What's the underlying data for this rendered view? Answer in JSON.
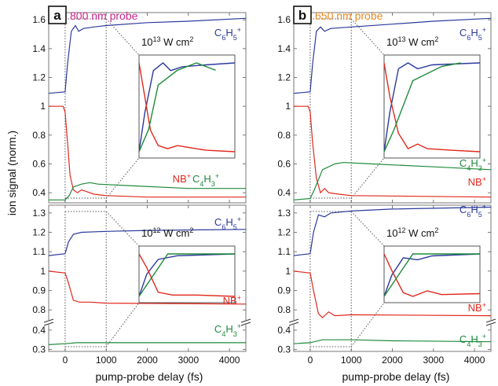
{
  "colors": {
    "blue": "#2b3a9c",
    "red": "#e0281c",
    "green": "#1e8a3a",
    "probe_a": "#c8268c",
    "probe_b": "#e88a20",
    "frame": "#777777",
    "guide": "#555555"
  },
  "y_axis_label": "ion signal (norm.)",
  "x_axis_label": "pump-probe delay (fs)",
  "chart_data": [
    {
      "type": "line",
      "panel": "a",
      "letter": "a",
      "probe": "800 nm probe",
      "x_ticks": [
        "0",
        "1000",
        "2000",
        "3000",
        "4000"
      ],
      "xlim": [
        -400,
        4400
      ],
      "subplots": [
        {
          "position": "top",
          "intensity_base": "10",
          "intensity_exp": "13",
          "intensity_unit": " W cm",
          "intensity_unit_exp": "2",
          "ylim": [
            0.33,
            1.65
          ],
          "y_ticks": [
            "0.4",
            "0.6",
            "0.8",
            "1",
            "1.2",
            "1.4",
            "1.6"
          ],
          "series": [
            {
              "label": "C",
              "sub1": "6",
              "mid": "H",
              "sub2": "5",
              "sup": "+",
              "color": "blue",
              "label_anchor": "end",
              "points": [
                [
                  -400,
                  1.09
                ],
                [
                  0,
                  1.1
                ],
                [
                  60,
                  1.3
                ],
                [
                  150,
                  1.52
                ],
                [
                  250,
                  1.56
                ],
                [
                  330,
                  1.52
                ],
                [
                  450,
                  1.54
                ],
                [
                  700,
                  1.55
                ],
                [
                  1000,
                  1.56
                ],
                [
                  2000,
                  1.58
                ],
                [
                  3000,
                  1.59
                ],
                [
                  4400,
                  1.61
                ]
              ]
            },
            {
              "label": "NB",
              "sup": "+",
              "color": "red",
              "label_anchor": "end",
              "points": [
                [
                  -400,
                  1.0
                ],
                [
                  -50,
                  1.0
                ],
                [
                  0,
                  0.96
                ],
                [
                  60,
                  0.74
                ],
                [
                  120,
                  0.52
                ],
                [
                  200,
                  0.42
                ],
                [
                  300,
                  0.4
                ],
                [
                  400,
                  0.42
                ],
                [
                  500,
                  0.41
                ],
                [
                  700,
                  0.39
                ],
                [
                  1000,
                  0.38
                ],
                [
                  2000,
                  0.37
                ],
                [
                  4400,
                  0.37
                ]
              ]
            },
            {
              "label": "C",
              "sub1": "4",
              "mid": "H",
              "sub2": "3",
              "sup": "+",
              "color": "green",
              "label_anchor": "start",
              "points": [
                [
                  -400,
                  0.35
                ],
                [
                  0,
                  0.35
                ],
                [
                  100,
                  0.38
                ],
                [
                  200,
                  0.44
                ],
                [
                  400,
                  0.46
                ],
                [
                  600,
                  0.47
                ],
                [
                  800,
                  0.46
                ],
                [
                  1500,
                  0.45
                ],
                [
                  3000,
                  0.43
                ],
                [
                  4400,
                  0.43
                ]
              ]
            }
          ]
        },
        {
          "position": "bottom",
          "intensity_base": "10",
          "intensity_exp": "12",
          "intensity_unit": " W cm",
          "intensity_unit_exp": "2",
          "ylim": [
            0.29,
            1.34
          ],
          "y_ticks": [
            "0.3",
            "0.4",
            "0.8",
            "0.9",
            "1",
            "1.1",
            "1.2",
            "1.3"
          ],
          "series": [
            {
              "label": "C",
              "sub1": "6",
              "mid": "H",
              "sub2": "5",
              "sup": "+",
              "color": "blue",
              "label_anchor": "end",
              "points": [
                [
                  -400,
                  1.08
                ],
                [
                  0,
                  1.09
                ],
                [
                  80,
                  1.15
                ],
                [
                  200,
                  1.19
                ],
                [
                  400,
                  1.2
                ],
                [
                  1000,
                  1.205
                ],
                [
                  2000,
                  1.21
                ],
                [
                  4400,
                  1.215
                ]
              ]
            },
            {
              "label": "NB",
              "sup": "+",
              "color": "red",
              "label_anchor": "end",
              "points": [
                [
                  -400,
                  1.0
                ],
                [
                  0,
                  0.99
                ],
                [
                  80,
                  0.94
                ],
                [
                  200,
                  0.85
                ],
                [
                  350,
                  0.84
                ],
                [
                  600,
                  0.84
                ],
                [
                  1000,
                  0.835
                ],
                [
                  4400,
                  0.83
                ]
              ]
            },
            {
              "label": "C",
              "sub1": "4",
              "mid": "H",
              "sub2": "3",
              "sup": "+",
              "color": "green",
              "label_anchor": "end",
              "points": [
                [
                  -400,
                  0.325
                ],
                [
                  0,
                  0.33
                ],
                [
                  300,
                  0.335
                ],
                [
                  1000,
                  0.335
                ],
                [
                  4400,
                  0.335
                ]
              ]
            }
          ]
        }
      ]
    },
    {
      "type": "line",
      "panel": "b",
      "letter": "b",
      "probe": "650 nm probe",
      "x_ticks": [
        "0",
        "1000",
        "2000",
        "3000",
        "4000"
      ],
      "xlim": [
        -400,
        4400
      ],
      "subplots": [
        {
          "position": "top",
          "intensity_base": "10",
          "intensity_exp": "13",
          "intensity_unit": " W cm",
          "intensity_unit_exp": "2",
          "ylim": [
            0.33,
            1.65
          ],
          "y_ticks": [
            "0.4",
            "0.6",
            "0.8",
            "1",
            "1.2",
            "1.4",
            "1.6"
          ],
          "series": [
            {
              "label": "C",
              "sub1": "6",
              "mid": "H",
              "sub2": "5",
              "sup": "+",
              "color": "blue",
              "label_anchor": "end",
              "points": [
                [
                  -400,
                  1.09
                ],
                [
                  0,
                  1.1
                ],
                [
                  60,
                  1.3
                ],
                [
                  150,
                  1.52
                ],
                [
                  250,
                  1.55
                ],
                [
                  350,
                  1.52
                ],
                [
                  500,
                  1.54
                ],
                [
                  1000,
                  1.55
                ],
                [
                  2000,
                  1.57
                ],
                [
                  3000,
                  1.59
                ],
                [
                  4400,
                  1.61
                ]
              ]
            },
            {
              "label": "NB",
              "sup": "+",
              "color": "red",
              "label_anchor": "end",
              "points": [
                [
                  -400,
                  1.0
                ],
                [
                  -50,
                  1.0
                ],
                [
                  0,
                  0.96
                ],
                [
                  60,
                  0.74
                ],
                [
                  150,
                  0.5
                ],
                [
                  250,
                  0.4
                ],
                [
                  350,
                  0.43
                ],
                [
                  450,
                  0.4
                ],
                [
                  700,
                  0.39
                ],
                [
                  1000,
                  0.38
                ],
                [
                  4400,
                  0.37
                ]
              ]
            },
            {
              "label": "C",
              "sub1": "4",
              "mid": "H",
              "sub2": "3",
              "sup": "+",
              "color": "green",
              "label_anchor": "end",
              "points": [
                [
                  -400,
                  0.35
                ],
                [
                  0,
                  0.36
                ],
                [
                  100,
                  0.42
                ],
                [
                  300,
                  0.56
                ],
                [
                  600,
                  0.6
                ],
                [
                  800,
                  0.61
                ],
                [
                  1500,
                  0.6
                ],
                [
                  3000,
                  0.58
                ],
                [
                  4400,
                  0.56
                ]
              ]
            }
          ]
        },
        {
          "position": "bottom",
          "intensity_base": "10",
          "intensity_exp": "12",
          "intensity_unit": " W cm",
          "intensity_unit_exp": "2",
          "ylim": [
            0.29,
            1.34
          ],
          "y_ticks": [
            "0.3",
            "0.4",
            "0.8",
            "0.9",
            "1",
            "1.1",
            "1.2",
            "1.3"
          ],
          "series": [
            {
              "label": "C",
              "sub1": "6",
              "mid": "H",
              "sub2": "5",
              "sup": "+",
              "color": "blue",
              "label_anchor": "end",
              "points": [
                [
                  -400,
                  1.08
                ],
                [
                  0,
                  1.09
                ],
                [
                  80,
                  1.2
                ],
                [
                  200,
                  1.29
                ],
                [
                  350,
                  1.28
                ],
                [
                  500,
                  1.3
                ],
                [
                  1000,
                  1.31
                ],
                [
                  2000,
                  1.32
                ],
                [
                  4400,
                  1.33
                ]
              ]
            },
            {
              "label": "NB",
              "sup": "+",
              "color": "red",
              "label_anchor": "end",
              "points": [
                [
                  -400,
                  1.0
                ],
                [
                  0,
                  0.99
                ],
                [
                  80,
                  0.9
                ],
                [
                  200,
                  0.78
                ],
                [
                  300,
                  0.76
                ],
                [
                  450,
                  0.79
                ],
                [
                  600,
                  0.77
                ],
                [
                  1000,
                  0.775
                ],
                [
                  4400,
                  0.77
                ]
              ]
            },
            {
              "label": "C",
              "sub1": "4",
              "mid": "H",
              "sub2": "3",
              "sup": "+",
              "color": "green",
              "label_anchor": "end",
              "points": [
                [
                  -400,
                  0.33
                ],
                [
                  0,
                  0.335
                ],
                [
                  300,
                  0.35
                ],
                [
                  1000,
                  0.35
                ],
                [
                  2000,
                  0.345
                ],
                [
                  4400,
                  0.34
                ]
              ]
            }
          ]
        }
      ]
    }
  ]
}
